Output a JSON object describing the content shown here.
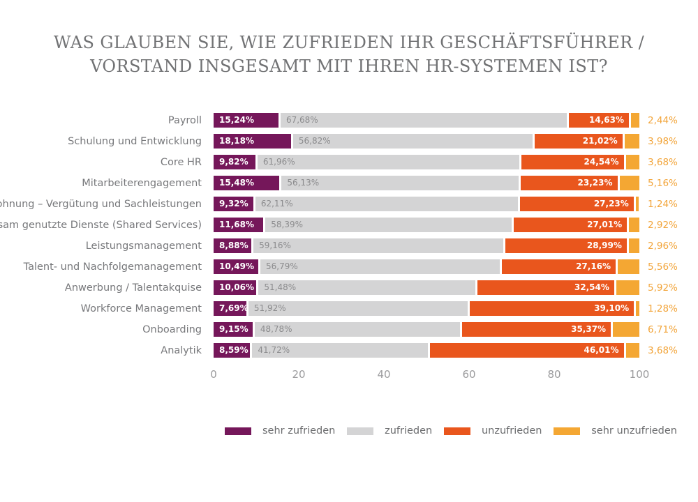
{
  "title": {
    "line1": "WAS GLAUBEN SIE, WIE ZUFRIEDEN IHR GESCHÄFTSFÜHRER /",
    "line2": "VORSTAND INSGESAMT MIT IHREN HR-SYSTEMEN IST?"
  },
  "colors": {
    "sehr_zufrieden": "#75175A",
    "zufrieden": "#D4D4D5",
    "unzufrieden": "#E9561D",
    "sehr_unzufrieden": "#F4A733",
    "title_text": "#717274",
    "category_text": "#77787B",
    "value_on_dark": "#FFFFFF",
    "value_on_light": "#8B8B8D",
    "outside_value_text": "#F2A53B",
    "axis_text": "#9B9B9D",
    "legend_text": "#6B6C6E",
    "background": "#FFFFFF"
  },
  "chart_data": {
    "type": "bar",
    "orientation": "horizontal",
    "stacked": true,
    "grid": false,
    "title": "WAS GLAUBEN SIE, WIE ZUFRIEDEN IHR GESCHÄFTSFÜHRER / VORSTAND INSGESAMT MIT IHREN HR-SYSTEMEN IST?",
    "xlabel": "",
    "ylabel": "",
    "xlim": [
      0,
      100
    ],
    "x_ticks": [
      0,
      20,
      40,
      60,
      80,
      100
    ],
    "legend_position": "bottom",
    "categories": [
      "Payroll",
      "Schulung und Entwicklung",
      "Core HR",
      "Mitarbeiterengagement",
      "Belohnung – Vergütung und Sachleistungen",
      "Gemeinsam genutzte Dienste (Shared Services)",
      "Leistungsmanagement",
      "Talent- und Nachfolgemanagement",
      "Anwerbung / Talentakquise",
      "Workforce Management",
      "Onboarding",
      "Analytik"
    ],
    "series": [
      {
        "name": "sehr zufrieden",
        "color": "#75175A",
        "values": [
          15.24,
          18.18,
          9.82,
          15.48,
          9.32,
          11.68,
          8.88,
          10.49,
          10.06,
          7.69,
          9.15,
          8.59
        ],
        "labels": [
          "15,24%",
          "18,18%",
          "9,82%",
          "15,48%",
          "9,32%",
          "11,68%",
          "8,88%",
          "10,49%",
          "10,06%",
          "7,69%",
          "9,15%",
          "8,59%"
        ]
      },
      {
        "name": "zufrieden",
        "color": "#D4D4D5",
        "values": [
          67.68,
          56.82,
          61.96,
          56.13,
          62.11,
          58.39,
          59.16,
          56.79,
          51.48,
          51.92,
          48.78,
          41.72
        ],
        "labels": [
          "67,68%",
          "56,82%",
          "61,96%",
          "56,13%",
          "62,11%",
          "58,39%",
          "59,16%",
          "56,79%",
          "51,48%",
          "51,92%",
          "48,78%",
          "41,72%"
        ]
      },
      {
        "name": "unzufrieden",
        "color": "#E9561D",
        "values": [
          14.63,
          21.02,
          24.54,
          23.23,
          27.23,
          27.01,
          28.99,
          27.16,
          32.54,
          39.1,
          35.37,
          46.01
        ],
        "labels": [
          "14,63%",
          "21,02%",
          "24,54%",
          "23,23%",
          "27,23%",
          "27,01%",
          "28,99%",
          "27,16%",
          "32,54%",
          "39,10%",
          "35,37%",
          "46,01%"
        ]
      },
      {
        "name": "sehr unzufrieden",
        "color": "#F4A733",
        "values": [
          2.44,
          3.98,
          3.68,
          5.16,
          1.24,
          2.92,
          2.96,
          5.56,
          5.92,
          1.28,
          6.71,
          3.68
        ],
        "labels": [
          "2,44%",
          "3,98%",
          "3,68%",
          "5,16%",
          "1,24%",
          "2,92%",
          "2,96%",
          "5,56%",
          "5,92%",
          "1,28%",
          "6,71%",
          "3,68%"
        ]
      }
    ]
  }
}
